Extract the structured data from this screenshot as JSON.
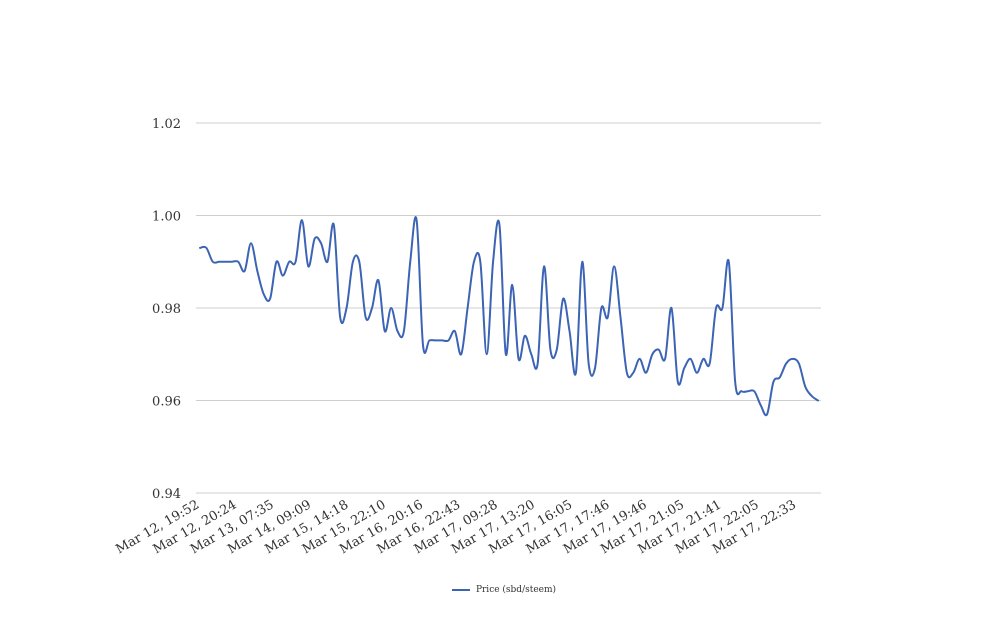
{
  "chart_data": {
    "type": "line",
    "title": "",
    "xlabel": "",
    "ylabel": "",
    "ylim": [
      0.94,
      1.02
    ],
    "yticks": [
      "0.94",
      "0.96",
      "0.98",
      "1.00",
      "1.02"
    ],
    "grid": true,
    "legend_position": "bottom",
    "color": "#3c64b4",
    "x_ticks": [
      "Mar 12, 19:52",
      "Mar 12, 20:24",
      "Mar 13, 07:35",
      "Mar 14, 09:09",
      "Mar 15, 14:18",
      "Mar 15, 22:10",
      "Mar 16, 20:16",
      "Mar 16, 22:43",
      "Mar 17, 09:28",
      "Mar 17, 13:20",
      "Mar 17, 16:05",
      "Mar 17, 17:46",
      "Mar 17, 19:46",
      "Mar 17, 21:05",
      "Mar 17, 21:41",
      "Mar 17, 22:05",
      "Mar 17, 22:33"
    ],
    "series": [
      {
        "name": "Price (sbd/steem)",
        "values": [
          0.993,
          0.993,
          0.99,
          0.99,
          0.99,
          0.99,
          0.99,
          0.988,
          0.994,
          0.988,
          0.983,
          0.982,
          0.99,
          0.987,
          0.99,
          0.99,
          0.999,
          0.989,
          0.995,
          0.994,
          0.99,
          0.998,
          0.978,
          0.98,
          0.99,
          0.99,
          0.978,
          0.98,
          0.986,
          0.975,
          0.98,
          0.975,
          0.975,
          0.99,
          0.999,
          0.972,
          0.973,
          0.973,
          0.973,
          0.973,
          0.975,
          0.97,
          0.98,
          0.99,
          0.99,
          0.97,
          0.99,
          0.998,
          0.97,
          0.985,
          0.969,
          0.974,
          0.97,
          0.968,
          0.989,
          0.971,
          0.971,
          0.982,
          0.975,
          0.966,
          0.99,
          0.968,
          0.967,
          0.98,
          0.978,
          0.989,
          0.978,
          0.966,
          0.966,
          0.969,
          0.966,
          0.97,
          0.971,
          0.969,
          0.98,
          0.964,
          0.967,
          0.969,
          0.966,
          0.969,
          0.968,
          0.98,
          0.98,
          0.99,
          0.964,
          0.962,
          0.962,
          0.962,
          0.959,
          0.957,
          0.964,
          0.965,
          0.968,
          0.969,
          0.968,
          0.963,
          0.961,
          0.96
        ]
      }
    ]
  }
}
